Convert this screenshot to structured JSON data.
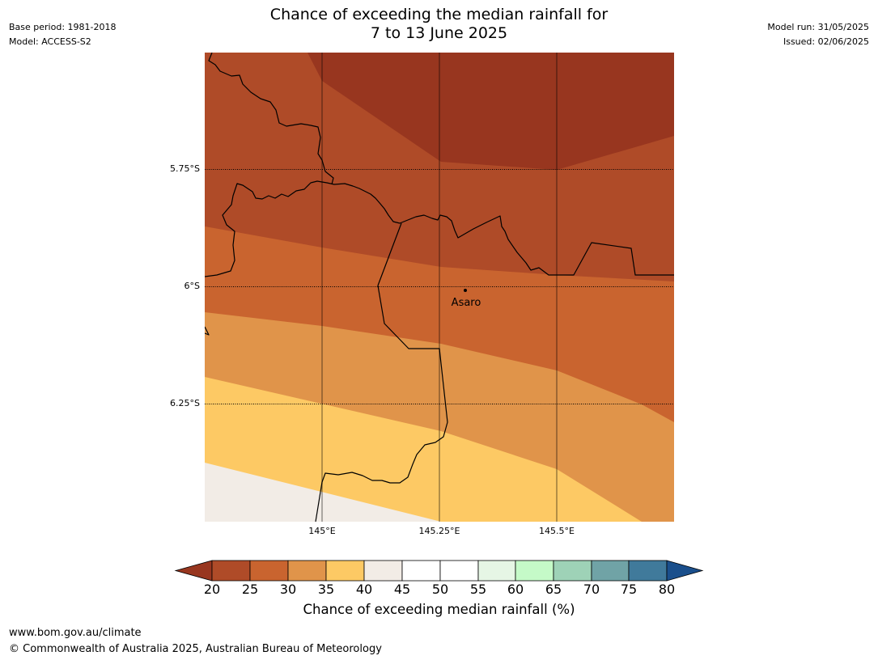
{
  "header": {
    "title_line1": "Chance of exceeding the median rainfall for",
    "title_line2": "7 to 13 June 2025",
    "base_period": "Base period: 1981-2018",
    "model": "Model: ACCESS-S2",
    "model_run": "Model run: 31/05/2025",
    "issued": "Issued: 02/06/2025"
  },
  "map": {
    "lat_labels": [
      "5.75°S",
      "6°S",
      "6.25°S"
    ],
    "lon_labels": [
      "145°E",
      "145.25°E",
      "145.5°E"
    ],
    "place": "Asaro"
  },
  "colorbar": {
    "ticks": [
      "20",
      "25",
      "30",
      "35",
      "40",
      "45",
      "50",
      "55",
      "60",
      "65",
      "70",
      "75",
      "80"
    ],
    "colors": [
      "#af4b28",
      "#c9642f",
      "#e0944a",
      "#fdc964",
      "#f2ece6",
      "#ffffff",
      "#ffffff",
      "#e6f6e5",
      "#c5fac8",
      "#9ed2b7",
      "#70a3a6",
      "#407a9b"
    ],
    "under_color": "#98361f",
    "over_color": "#1a4f8c",
    "title": "Chance of exceeding median rainfall (%)"
  },
  "footer": {
    "url": "www.bom.gov.au/climate",
    "copyright": "© Commonwealth of Australia 2025, Australian Bureau of Meteorology"
  }
}
